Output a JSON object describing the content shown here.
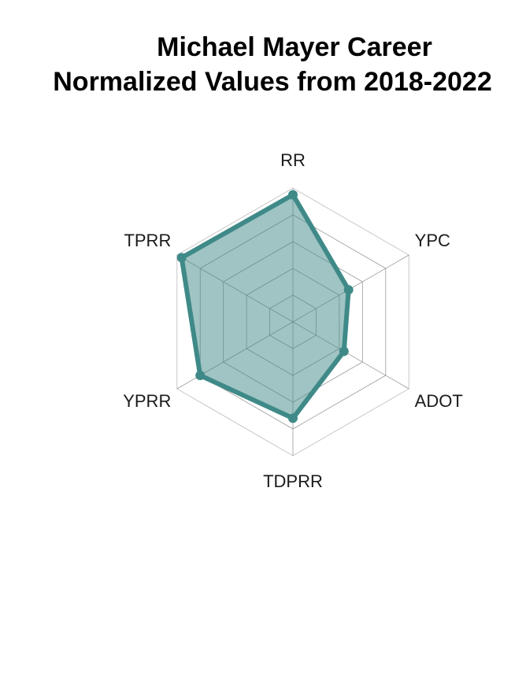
{
  "chart_data": {
    "type": "radar",
    "title_lines": [
      "Michael Mayer Career",
      "Normalized Values from 2018-2022"
    ],
    "axes": [
      "RR",
      "YPC",
      "ADOT",
      "TDPRR",
      "YPRR",
      "TPRR"
    ],
    "values": [
      0.95,
      0.48,
      0.44,
      0.72,
      0.8,
      0.96
    ],
    "range": [
      0,
      1
    ],
    "grid_levels": 5,
    "series_color": "#3f8a88",
    "fill_color": "#3f8a88",
    "grid_color": "#bdbdbd"
  }
}
